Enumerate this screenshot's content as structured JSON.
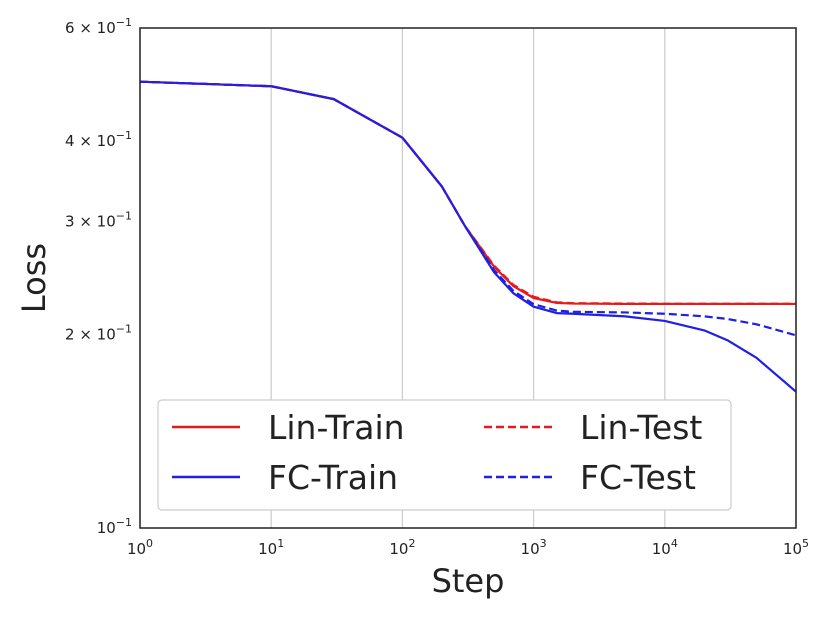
{
  "chart_data": {
    "type": "line",
    "xlabel": "Step",
    "ylabel": "Loss",
    "xscale": "log",
    "yscale": "log",
    "xlim": [
      1,
      100000
    ],
    "ylim": [
      0.1,
      0.6
    ],
    "grid": "vertical",
    "legend_position": "lower-left",
    "x_ticks": [
      {
        "value": 1,
        "base": "10",
        "exp": "0"
      },
      {
        "value": 10,
        "base": "10",
        "exp": "1"
      },
      {
        "value": 100,
        "base": "10",
        "exp": "2"
      },
      {
        "value": 1000,
        "base": "10",
        "exp": "3"
      },
      {
        "value": 10000,
        "base": "10",
        "exp": "4"
      },
      {
        "value": 100000,
        "base": "10",
        "exp": "5"
      }
    ],
    "y_ticks": [
      {
        "value": 0.6,
        "mant": "6",
        "exp": "−1"
      },
      {
        "value": 0.4,
        "mant": "4",
        "exp": "−1"
      },
      {
        "value": 0.3,
        "mant": "3",
        "exp": "−1"
      },
      {
        "value": 0.2,
        "mant": "2",
        "exp": "−1"
      },
      {
        "value": 0.1,
        "mant": "",
        "exp": "−1"
      }
    ],
    "series": [
      {
        "name": "Lin-Train",
        "color": "#e41a1c",
        "dash": "solid",
        "x": [
          1,
          10,
          30,
          100,
          200,
          300,
          500,
          700,
          1000,
          1500,
          2000,
          5000,
          10000,
          30000,
          100000
        ],
        "y": [
          0.495,
          0.487,
          0.465,
          0.405,
          0.34,
          0.295,
          0.255,
          0.238,
          0.228,
          0.224,
          0.2235,
          0.2232,
          0.2232,
          0.2232,
          0.2232
        ]
      },
      {
        "name": "FC-Train",
        "color": "#1f1fe6",
        "dash": "solid",
        "x": [
          1,
          10,
          30,
          100,
          200,
          300,
          500,
          700,
          1000,
          1500,
          2000,
          5000,
          10000,
          20000,
          30000,
          50000,
          100000
        ],
        "y": [
          0.495,
          0.487,
          0.465,
          0.405,
          0.34,
          0.295,
          0.25,
          0.232,
          0.221,
          0.216,
          0.2155,
          0.2135,
          0.21,
          0.203,
          0.196,
          0.184,
          0.163
        ]
      },
      {
        "name": "Lin-Test",
        "color": "#e41a1c",
        "dash": "dashed",
        "x": [
          1,
          10,
          30,
          100,
          200,
          300,
          500,
          700,
          1000,
          1500,
          2000,
          5000,
          10000,
          30000,
          100000
        ],
        "y": [
          0.495,
          0.487,
          0.465,
          0.405,
          0.34,
          0.295,
          0.256,
          0.239,
          0.229,
          0.2245,
          0.2238,
          0.2235,
          0.2234,
          0.2234,
          0.2234
        ]
      },
      {
        "name": "FC-Test",
        "color": "#1f1fe6",
        "dash": "dashed",
        "x": [
          1,
          10,
          30,
          100,
          200,
          300,
          500,
          700,
          1000,
          1500,
          2000,
          5000,
          10000,
          20000,
          30000,
          50000,
          100000
        ],
        "y": [
          0.495,
          0.487,
          0.465,
          0.405,
          0.34,
          0.295,
          0.252,
          0.234,
          0.223,
          0.218,
          0.217,
          0.2165,
          0.2155,
          0.2135,
          0.2115,
          0.2075,
          0.1995
        ]
      }
    ]
  }
}
